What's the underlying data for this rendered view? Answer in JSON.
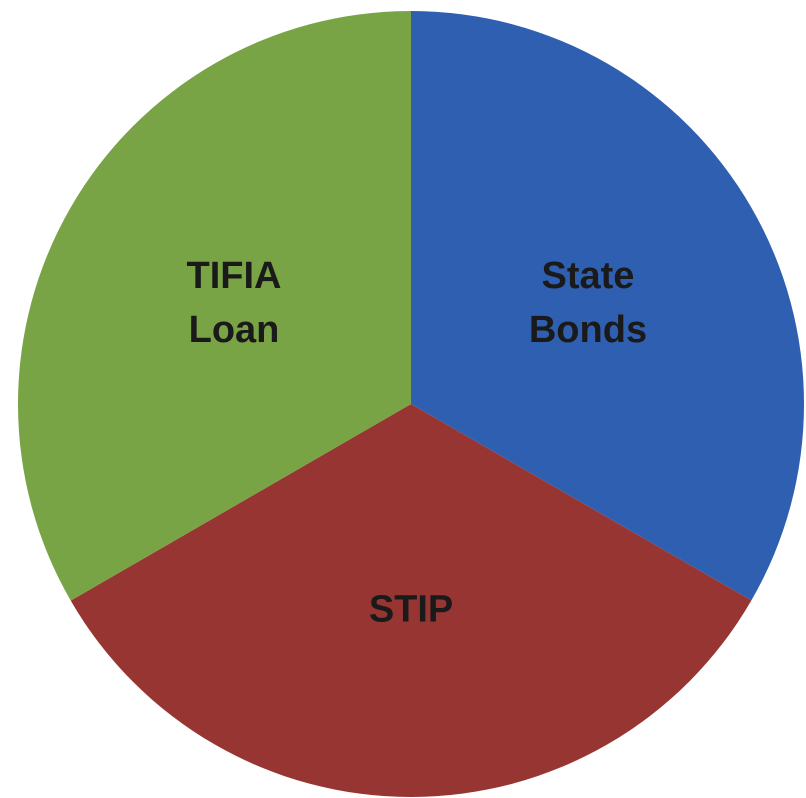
{
  "chart_data": {
    "type": "pie",
    "title": "",
    "slices": [
      {
        "label_lines": [
          "State",
          "Bonds"
        ],
        "value": 33.33,
        "color": "#2f5fb0"
      },
      {
        "label_lines": [
          "STIP"
        ],
        "value": 33.33,
        "color": "#973533"
      },
      {
        "label_lines": [
          "TIFIA",
          "Loan"
        ],
        "value": 33.34,
        "color": "#79a445"
      }
    ],
    "start_angle_deg": 0,
    "direction": "clockwise",
    "legend": "none"
  }
}
